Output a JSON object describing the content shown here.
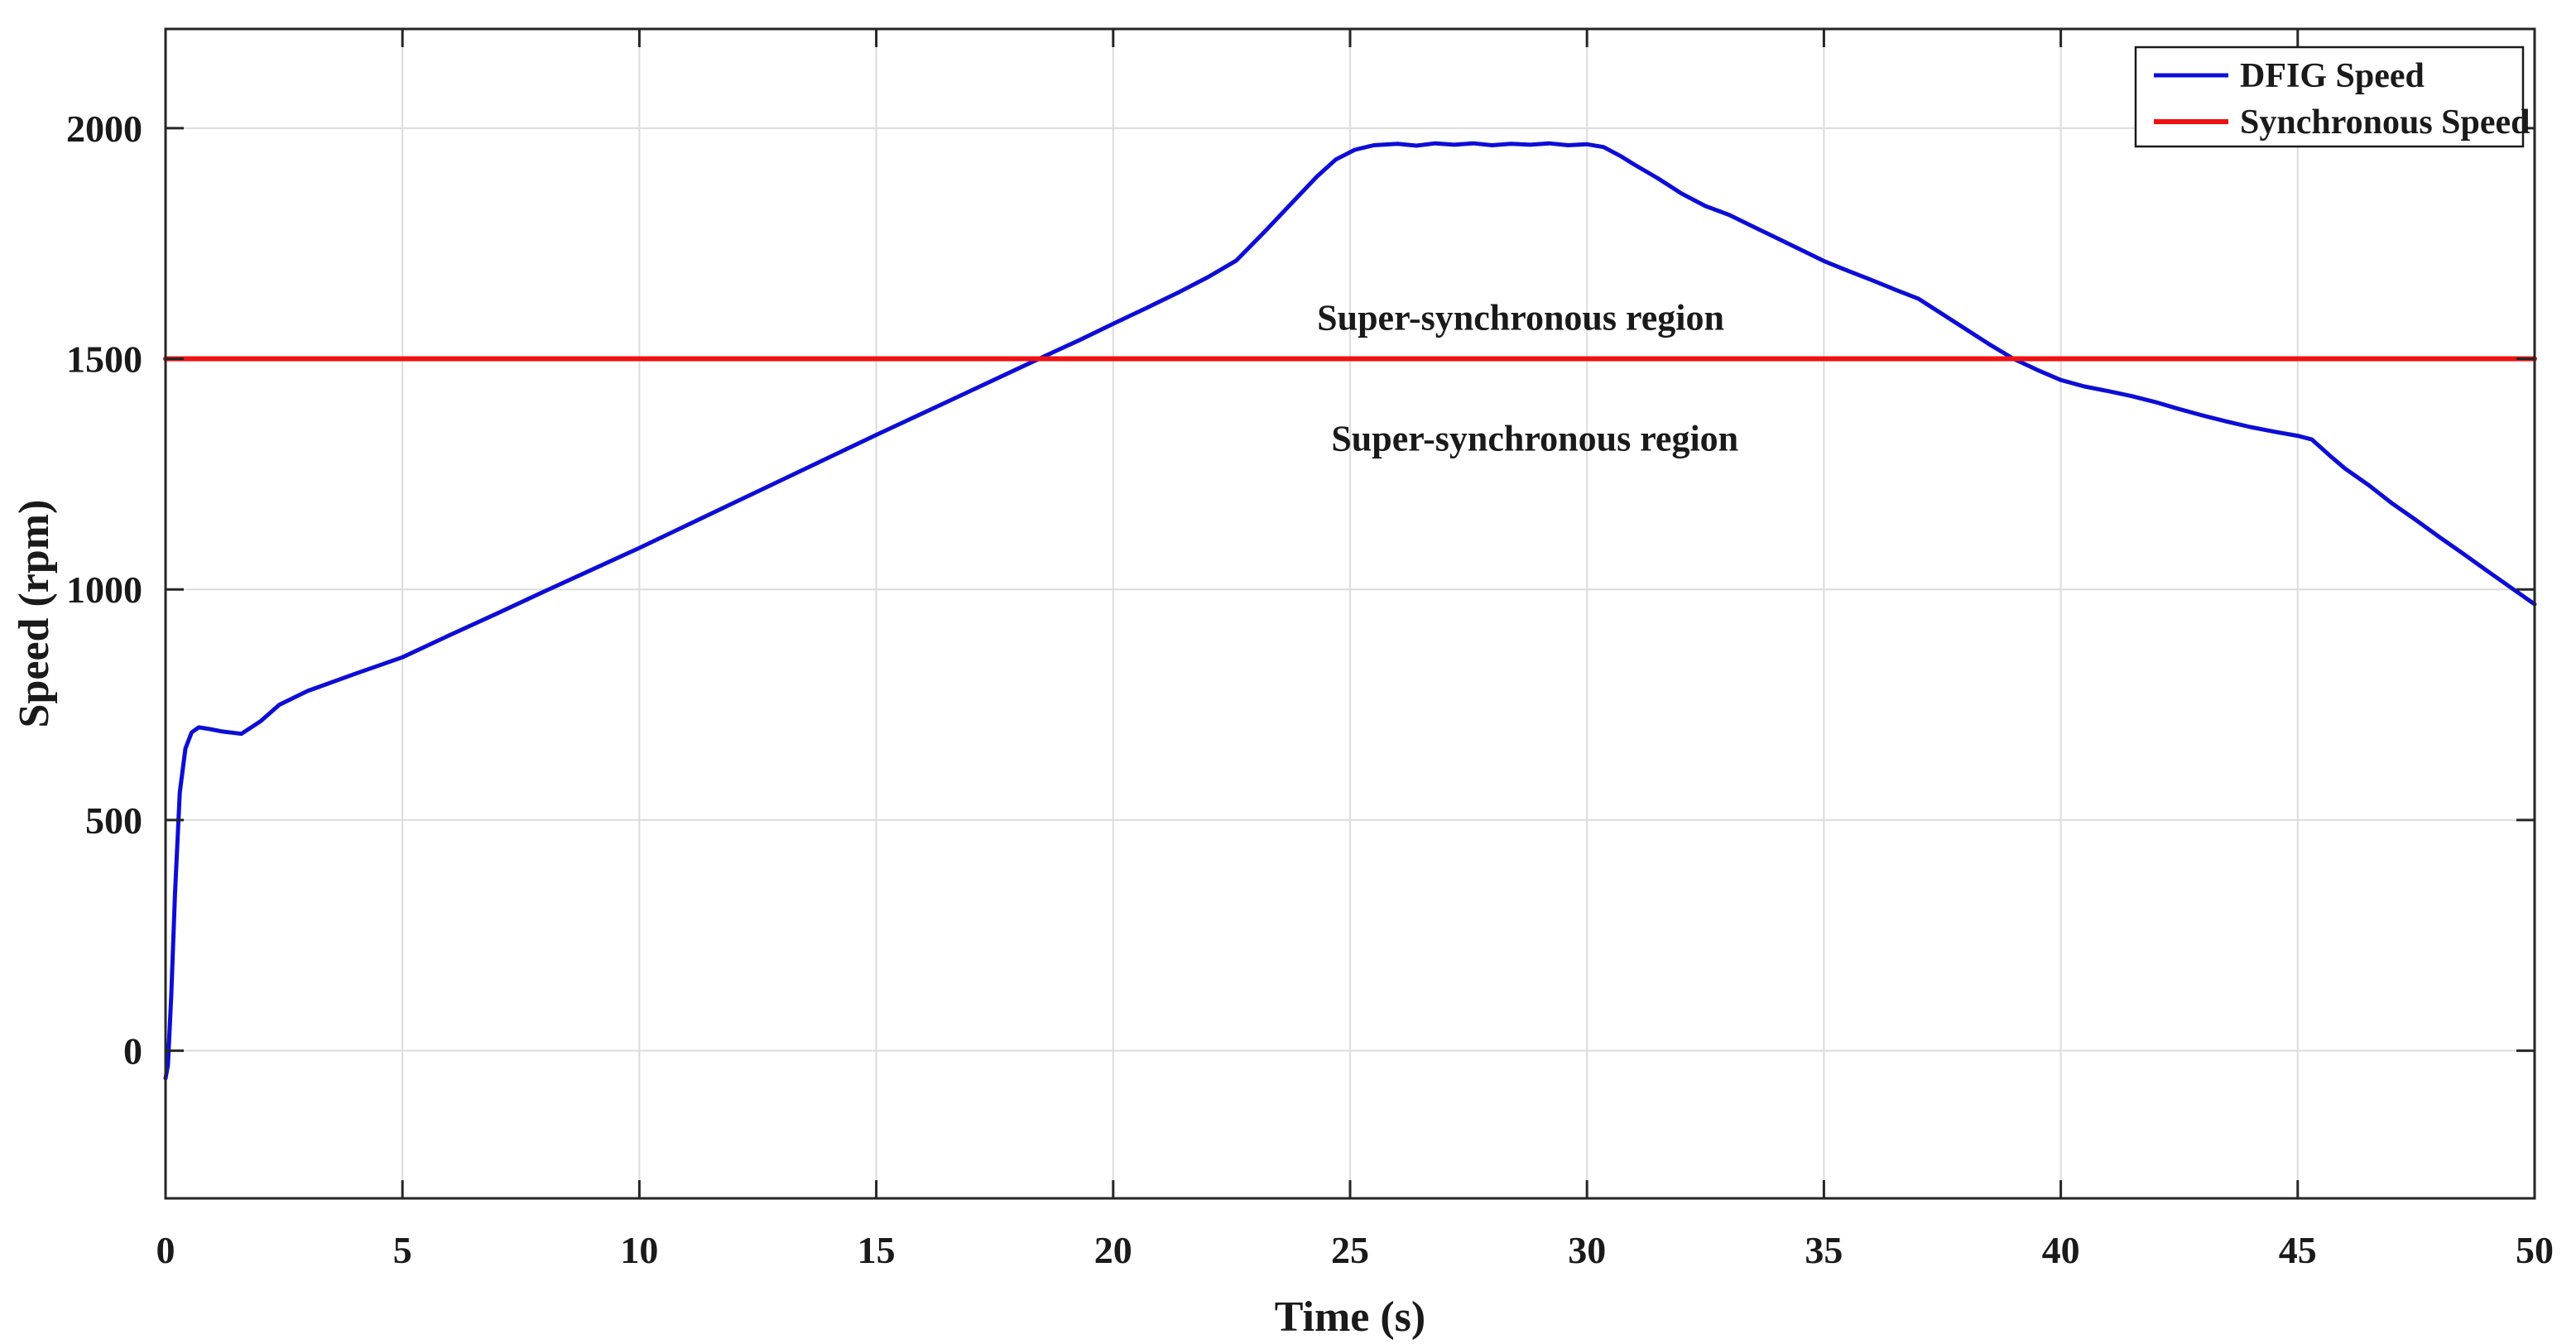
{
  "figure": {
    "background": "#ffffff",
    "border_color": "#262626",
    "grid_color": "#dcdcdc"
  },
  "chart_data": {
    "type": "line",
    "title": "",
    "xlabel": "Time (s)",
    "ylabel": "Speed (rpm)",
    "xlim": [
      0,
      50
    ],
    "ylim": [
      -320,
      2215
    ],
    "xticks": [
      0,
      5,
      10,
      15,
      20,
      25,
      30,
      35,
      40,
      45,
      50
    ],
    "yticks": [
      0,
      500,
      1000,
      1500,
      2000
    ],
    "grid": true,
    "legend_position": "top-right",
    "series": [
      {
        "name": "DFIG Speed",
        "color": "#0d0dd6",
        "width": 5,
        "points": [
          [
            0,
            -60
          ],
          [
            0.05,
            -30
          ],
          [
            0.12,
            120
          ],
          [
            0.2,
            340
          ],
          [
            0.3,
            560
          ],
          [
            0.42,
            655
          ],
          [
            0.55,
            690
          ],
          [
            0.7,
            701
          ],
          [
            0.9,
            698
          ],
          [
            1.2,
            692
          ],
          [
            1.6,
            687
          ],
          [
            2,
            714
          ],
          [
            2.4,
            750
          ],
          [
            3,
            780
          ],
          [
            4,
            817
          ],
          [
            5,
            853
          ],
          [
            6,
            901
          ],
          [
            7,
            948
          ],
          [
            8,
            996
          ],
          [
            9,
            1043
          ],
          [
            10,
            1090
          ],
          [
            11,
            1139
          ],
          [
            12,
            1188
          ],
          [
            13,
            1237
          ],
          [
            14,
            1286
          ],
          [
            15,
            1335
          ],
          [
            16,
            1383
          ],
          [
            17,
            1431
          ],
          [
            18,
            1479
          ],
          [
            18.6,
            1508
          ],
          [
            19.3,
            1541
          ],
          [
            20,
            1576
          ],
          [
            20.7,
            1610
          ],
          [
            21.4,
            1645
          ],
          [
            22,
            1677
          ],
          [
            22.6,
            1713
          ],
          [
            23.2,
            1776
          ],
          [
            23.8,
            1841
          ],
          [
            24.3,
            1895
          ],
          [
            24.7,
            1932
          ],
          [
            25.1,
            1953
          ],
          [
            25.5,
            1963
          ],
          [
            26,
            1966
          ],
          [
            26.4,
            1962
          ],
          [
            26.8,
            1967
          ],
          [
            27.2,
            1964
          ],
          [
            27.6,
            1967
          ],
          [
            28,
            1963
          ],
          [
            28.4,
            1966
          ],
          [
            28.8,
            1964
          ],
          [
            29.2,
            1967
          ],
          [
            29.6,
            1963
          ],
          [
            30,
            1965
          ],
          [
            30.35,
            1959
          ],
          [
            30.7,
            1940
          ],
          [
            31,
            1921
          ],
          [
            31.5,
            1891
          ],
          [
            32,
            1858
          ],
          [
            32.5,
            1831
          ],
          [
            33,
            1812
          ],
          [
            33.5,
            1787
          ],
          [
            34,
            1762
          ],
          [
            34.5,
            1737
          ],
          [
            35,
            1712
          ],
          [
            35.5,
            1691
          ],
          [
            36,
            1671
          ],
          [
            36.5,
            1650
          ],
          [
            37,
            1630
          ],
          [
            37.5,
            1597
          ],
          [
            38,
            1564
          ],
          [
            38.5,
            1531
          ],
          [
            39,
            1500
          ],
          [
            39.5,
            1476
          ],
          [
            40,
            1454
          ],
          [
            40.5,
            1440
          ],
          [
            41,
            1430
          ],
          [
            41.5,
            1419
          ],
          [
            42,
            1406
          ],
          [
            42.5,
            1391
          ],
          [
            43,
            1377
          ],
          [
            43.5,
            1364
          ],
          [
            44,
            1352
          ],
          [
            44.5,
            1342
          ],
          [
            45,
            1333
          ],
          [
            45.3,
            1325
          ],
          [
            45.7,
            1288
          ],
          [
            46,
            1262
          ],
          [
            46.5,
            1226
          ],
          [
            47,
            1186
          ],
          [
            47.5,
            1150
          ],
          [
            48,
            1113
          ],
          [
            48.5,
            1077
          ],
          [
            49,
            1040
          ],
          [
            49.5,
            1004
          ],
          [
            50,
            968
          ]
        ]
      },
      {
        "name": "Synchronous Speed",
        "color": "#f01111",
        "width": 6,
        "points": [
          [
            0,
            1500
          ],
          [
            50,
            1500
          ]
        ]
      }
    ],
    "annotations": [
      {
        "text": "Super-synchronous region",
        "x": 28.6,
        "y": 1590
      },
      {
        "text": "Super-synchronous region",
        "x": 28.9,
        "y": 1328
      }
    ]
  }
}
